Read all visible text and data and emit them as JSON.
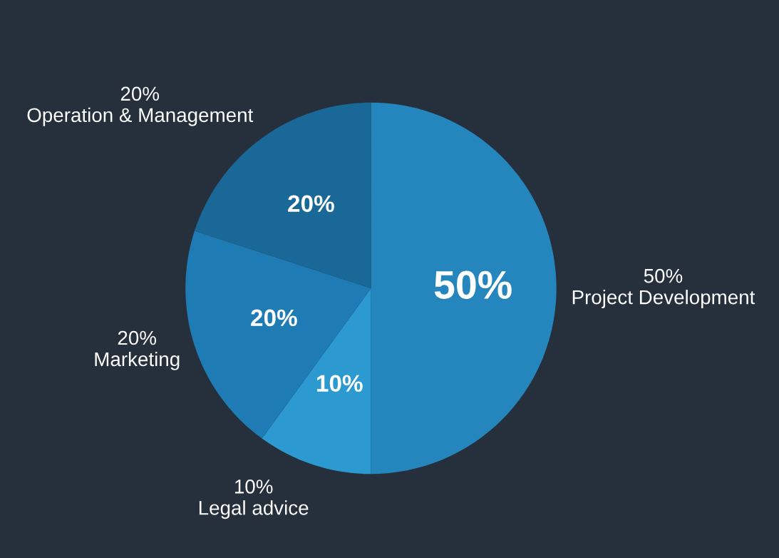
{
  "chart_data": {
    "type": "pie",
    "categories": [
      "Project Development",
      "Legal advice",
      "Marketing",
      "Operation & Management"
    ],
    "values": [
      50,
      10,
      20,
      20
    ],
    "value_labels": [
      "50%",
      "10%",
      "20%",
      "20%"
    ],
    "colors": [
      "#2586bd",
      "#2c9ad0",
      "#1f7bb3",
      "#1a6898"
    ],
    "legend": false
  }
}
